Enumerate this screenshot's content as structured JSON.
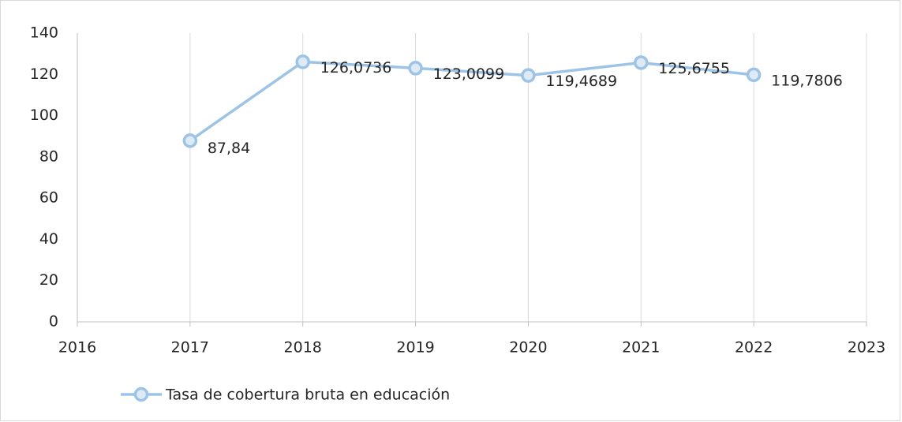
{
  "chart_data": {
    "type": "line",
    "x": [
      2017,
      2018,
      2019,
      2020,
      2021,
      2022
    ],
    "series": [
      {
        "name": "Tasa de cobertura bruta en educación",
        "color": "#9dc3e6",
        "values": [
          87.84,
          126.0736,
          123.0099,
          119.4689,
          125.6755,
          119.7806
        ],
        "value_labels": [
          "87,84",
          "126,0736",
          "123,0099",
          "119,4689",
          "125,6755",
          "119,7806"
        ]
      }
    ],
    "xlim": [
      2016,
      2023
    ],
    "xticks": [
      2016,
      2017,
      2018,
      2019,
      2020,
      2021,
      2022,
      2023
    ],
    "ylim": [
      0,
      140
    ],
    "yticks": [
      0,
      20,
      40,
      60,
      80,
      100,
      120,
      140
    ],
    "grid": "x",
    "legend": "bottom"
  }
}
